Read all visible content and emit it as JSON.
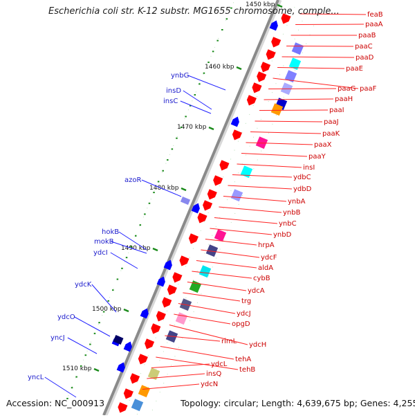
{
  "title": "Escherichia coli str. K-12 substr. MG1655 chromosome, comple...",
  "footer": {
    "accession": "Accession: NC_000913",
    "topology": "Topology: circular; Length: 4,639,675 bp; Genes: 4,255"
  },
  "scale_labels": [
    "1450 kbp",
    "1460 kbp",
    "1470 kbp",
    "1480 kbp",
    "1490 kbp",
    "1500 kbp",
    "1510 kbp"
  ],
  "left_genes": [
    "ynbG",
    "insD",
    "insC",
    "azoR",
    "hokB",
    "mokB",
    "ydcI",
    "ydcK",
    "ydcO",
    "yncJ",
    "yncL"
  ],
  "right_genes": [
    "feaB",
    "paaA",
    "paaB",
    "paaC",
    "paaD",
    "paaE",
    "paaF",
    "paaG",
    "paaH",
    "paaI",
    "paaJ",
    "paaK",
    "paaX",
    "paaY",
    "insI",
    "ydbC",
    "ydbD",
    "ynbA",
    "ynbB",
    "ynbC",
    "ynbD",
    "hrpA",
    "ydcF",
    "aldA",
    "cybB",
    "ydcA",
    "trg",
    "ydcJ",
    "opgD",
    "ydcH",
    "rimL",
    "tehA",
    "tehB",
    "ydcL",
    "insQ",
    "ydcN"
  ],
  "colors": {
    "forward_genes": "#ff0000",
    "reverse_genes": "#0000ff",
    "right_label_text": "#cc0000",
    "left_label_text": "#1a1acc",
    "backbone": "#8a8a8a",
    "ticks": "#1a8a1a"
  }
}
